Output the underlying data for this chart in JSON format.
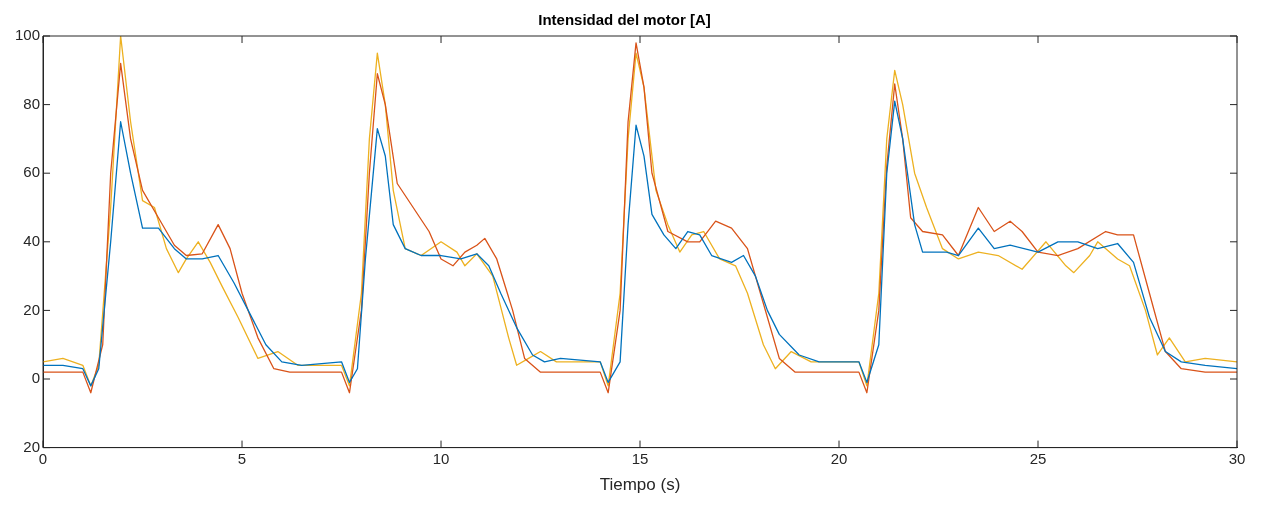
{
  "chart_data": {
    "type": "line",
    "title": "Intensidad del motor [A]",
    "xlabel": "Tiempo (s)",
    "xlim": [
      0,
      30
    ],
    "xticks": [
      0,
      5,
      10,
      15,
      20,
      25,
      30
    ],
    "ylim": [
      -20,
      100
    ],
    "yticks": [
      {
        "value": -20,
        "label": "20"
      },
      0,
      20,
      40,
      60,
      80,
      100
    ],
    "grid": false,
    "legend": false,
    "marker": "none",
    "line_style": "solid",
    "series": [
      {
        "color": "#0072bd",
        "x": [
          0,
          0.5,
          1.0,
          1.2,
          1.4,
          1.7,
          1.95,
          2.2,
          2.5,
          2.9,
          3.3,
          3.6,
          4.0,
          4.4,
          4.8,
          5.2,
          5.6,
          6.0,
          6.5,
          7.5,
          7.7,
          7.9,
          8.1,
          8.4,
          8.6,
          8.8,
          9.1,
          9.5,
          10,
          10.5,
          10.9,
          11.2,
          11.5,
          11.9,
          12.3,
          12.6,
          13.0,
          14.0,
          14.2,
          14.5,
          14.7,
          14.9,
          15.1,
          15.3,
          15.6,
          15.9,
          16.2,
          16.5,
          16.8,
          17.3,
          17.6,
          17.9,
          18.2,
          18.5,
          19.0,
          19.5,
          20.5,
          20.7,
          21.0,
          21.2,
          21.4,
          21.6,
          21.9,
          22.1,
          22.7,
          23.0,
          23.5,
          23.9,
          24.3,
          25.0,
          25.5,
          26.0,
          26.5,
          27.0,
          27.4,
          27.8,
          28.2,
          28.6,
          29.2,
          30
        ],
        "values": [
          4,
          4,
          3,
          -2,
          3,
          40,
          75,
          60,
          44,
          44,
          38,
          35,
          35,
          36,
          28,
          19,
          10,
          5,
          4,
          5,
          -1,
          3,
          35,
          73,
          65,
          45,
          38,
          36,
          36,
          35,
          36.5,
          33,
          25,
          15,
          7,
          5,
          6,
          5,
          -1,
          5,
          45,
          74,
          65,
          48,
          42,
          38,
          43,
          42,
          36,
          34,
          36,
          30,
          20,
          13,
          7,
          5,
          5,
          -1,
          10,
          60,
          81,
          70,
          45,
          37,
          37,
          36,
          44,
          38,
          39,
          37,
          40,
          40,
          38,
          39.5,
          34,
          18,
          8,
          5,
          4,
          3
        ]
      },
      {
        "color": "#d95319",
        "x": [
          0,
          1.0,
          1.2,
          1.5,
          1.7,
          1.95,
          2.2,
          2.5,
          2.9,
          3.3,
          3.6,
          4.0,
          4.4,
          4.7,
          5.0,
          5.4,
          5.8,
          6.2,
          7.5,
          7.7,
          8.0,
          8.2,
          8.4,
          8.6,
          8.9,
          9.3,
          9.7,
          10.0,
          10.3,
          10.6,
          10.9,
          11.1,
          11.4,
          11.8,
          12.1,
          12.5,
          14.0,
          14.2,
          14.5,
          14.7,
          14.9,
          15.1,
          15.3,
          15.7,
          16.2,
          16.5,
          16.9,
          17.3,
          17.7,
          18.1,
          18.5,
          18.9,
          20.5,
          20.7,
          21.0,
          21.2,
          21.4,
          21.6,
          21.8,
          22.1,
          22.6,
          23.0,
          23.5,
          23.9,
          24.3,
          24.6,
          25.0,
          25.5,
          26.0,
          26.7,
          27.0,
          27.4,
          27.8,
          28.2,
          28.6,
          29.2,
          30
        ],
        "values": [
          2,
          2,
          -4,
          10,
          60,
          92,
          70,
          55,
          47,
          39,
          36,
          36.5,
          45,
          38,
          25,
          12,
          3,
          2,
          2,
          -4,
          20,
          60,
          89,
          80,
          57,
          50,
          43,
          35,
          33,
          37,
          39,
          41,
          35,
          20,
          6,
          2,
          2,
          -4,
          20,
          75,
          98,
          85,
          60,
          43,
          40,
          40,
          46,
          44,
          38,
          22,
          6,
          2,
          2,
          -4,
          20,
          62,
          86,
          70,
          47,
          43,
          42,
          36,
          50,
          43,
          46,
          43,
          37,
          36,
          38,
          43,
          42,
          42,
          25,
          8,
          3,
          2,
          2
        ]
      },
      {
        "color": "#edb120",
        "x": [
          0,
          0.5,
          1.0,
          1.2,
          1.4,
          1.7,
          1.95,
          2.2,
          2.5,
          2.8,
          3.1,
          3.4,
          3.6,
          3.9,
          4.2,
          4.5,
          4.9,
          5.4,
          5.9,
          6.4,
          7.5,
          7.7,
          8.0,
          8.2,
          8.4,
          8.6,
          8.8,
          9.1,
          9.5,
          10.0,
          10.4,
          10.6,
          10.9,
          11.3,
          11.7,
          11.9,
          12.2,
          12.5,
          12.9,
          14.0,
          14.2,
          14.5,
          14.7,
          14.9,
          15.1,
          15.4,
          15.7,
          16.0,
          16.3,
          16.6,
          17.0,
          17.4,
          17.7,
          18.1,
          18.4,
          18.8,
          19.3,
          20.5,
          20.7,
          21.0,
          21.2,
          21.4,
          21.6,
          21.9,
          22.2,
          22.6,
          23.0,
          23.5,
          24.0,
          24.6,
          25.2,
          25.7,
          25.9,
          26.3,
          26.5,
          27.0,
          27.3,
          27.7,
          28.0,
          28.3,
          28.7,
          29.2,
          30
        ],
        "values": [
          5,
          6,
          4,
          -2,
          4,
          50,
          100,
          75,
          52,
          50,
          38,
          31,
          35,
          40,
          34,
          27,
          18,
          6,
          8,
          4,
          4,
          -2,
          25,
          70,
          95,
          80,
          55,
          38,
          36,
          40,
          37,
          33,
          36.5,
          30,
          12,
          4,
          6,
          8,
          5,
          5,
          -2,
          25,
          70,
          95,
          85,
          55,
          45,
          37,
          42,
          43,
          35,
          33,
          25,
          10,
          3,
          8,
          5,
          5,
          -2,
          25,
          70,
          90,
          80,
          60,
          50,
          38,
          35,
          37,
          36,
          32,
          40,
          33,
          31,
          36,
          40,
          35,
          33,
          20,
          7,
          12,
          5,
          6,
          5
        ]
      }
    ]
  }
}
